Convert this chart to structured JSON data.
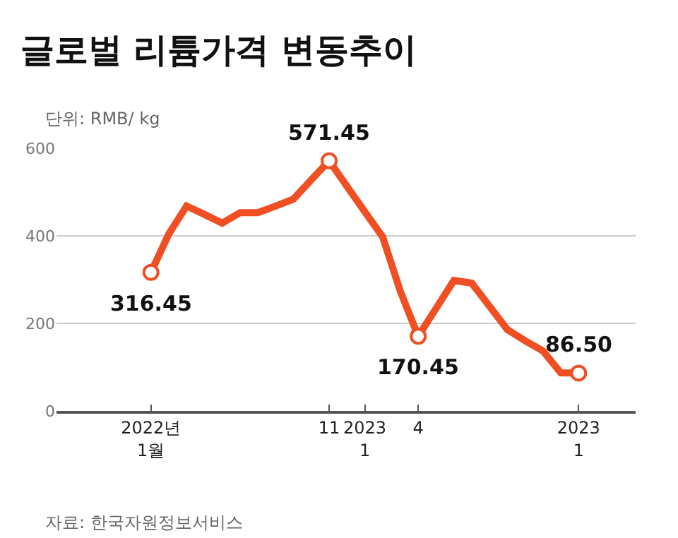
{
  "chart_data": {
    "type": "line",
    "title": "글로벌 리튬가격 변동추이",
    "subtitle": "단위: RMB/ kg",
    "categories": [
      "2022년\n1월",
      null,
      null,
      null,
      null,
      null,
      null,
      null,
      null,
      null,
      "11",
      null,
      "2023\n1",
      null,
      null,
      "4",
      null,
      null,
      null,
      null,
      null,
      null,
      null,
      null,
      "2023\n1"
    ],
    "series": [
      {
        "color": "#f04e23",
        "values": [
          316.45,
          404,
          468,
          449,
          429,
          453,
          453,
          468,
          484,
          528,
          571.45,
          513,
          455,
          398,
          273,
          170.45,
          234,
          298,
          292,
          239,
          186,
          160,
          137,
          87,
          86.5
        ]
      }
    ],
    "ylim": [
      0,
      600
    ],
    "yticks": [
      0,
      200,
      400,
      600
    ],
    "grid": "y",
    "marker": "none",
    "line_style": "solid",
    "annotations": [
      {
        "text": "316.45",
        "y": 316.45
      },
      {
        "text": "571.45",
        "y": 571.45
      },
      {
        "text": "170.45",
        "y": 170.45
      },
      {
        "text": "86.50",
        "y": 86.5
      },
      "자료: 한국자원정보서비스"
    ]
  }
}
